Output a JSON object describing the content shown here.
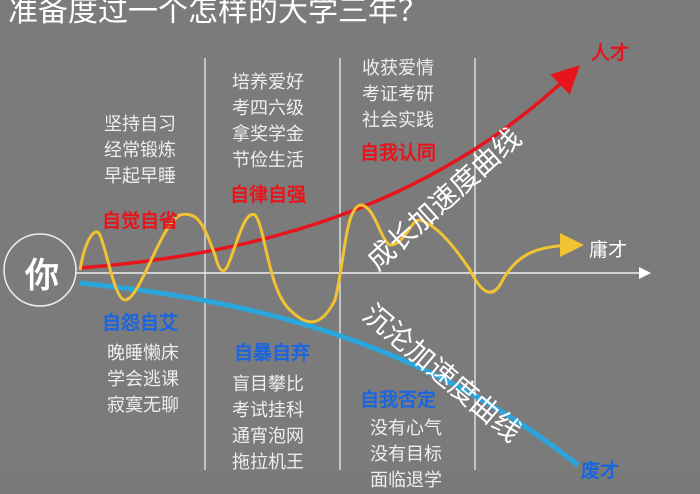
{
  "title": "准备度过一个怎样的大学三年？",
  "center_label": "你",
  "outcomes": {
    "top": "人才",
    "middle": "庸才",
    "bottom": "废才"
  },
  "curves": {
    "growth": "成长加速度曲线",
    "decline": "沉沦加速度曲线"
  },
  "positive": [
    {
      "heading": "自觉自省",
      "items": [
        "坚持自习",
        "经常锻炼",
        "早起早睡"
      ]
    },
    {
      "heading": "自律自强",
      "items": [
        "培养爱好",
        "考四六级",
        "拿奖学金",
        "节俭生活"
      ]
    },
    {
      "heading": "自我认同",
      "items": [
        "收获爱情",
        "考证考研",
        "社会实践"
      ]
    }
  ],
  "negative": [
    {
      "heading": "自怨自艾",
      "items": [
        "晚睡懒床",
        "学会逃课",
        "寂寞无聊"
      ]
    },
    {
      "heading": "自暴自弃",
      "items": [
        "盲目攀比",
        "考试挂科",
        "通宵泡网",
        "拖拉机王"
      ]
    },
    {
      "heading": "自我否定",
      "items": [
        "没有心气",
        "没有目标",
        "面临退学"
      ]
    }
  ],
  "colors": {
    "growth": "#e8141b",
    "decline": "#2aa6dc",
    "average": "#f1c232",
    "positive_text": "#e8141b",
    "negative_text": "#1a66e0"
  }
}
